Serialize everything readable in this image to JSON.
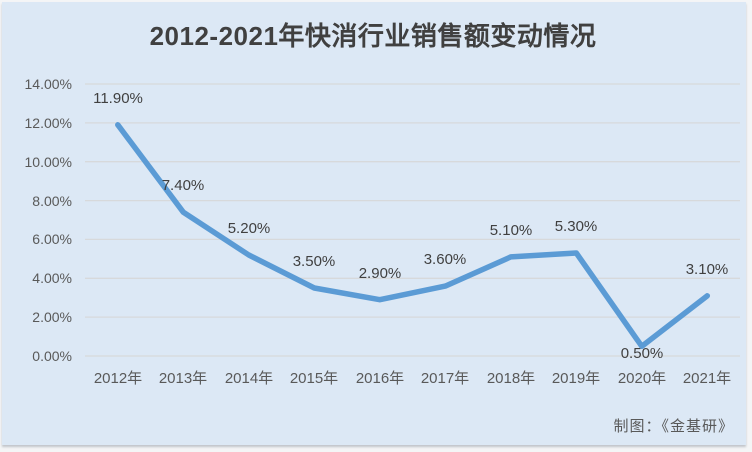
{
  "chart_data": {
    "type": "line",
    "title": "2012-2021年快消行业销售额变动情况",
    "categories": [
      "2012年",
      "2013年",
      "2014年",
      "2015年",
      "2016年",
      "2017年",
      "2018年",
      "2019年",
      "2020年",
      "2021年"
    ],
    "values": [
      11.9,
      7.4,
      5.2,
      3.5,
      2.9,
      3.6,
      5.1,
      5.3,
      0.5,
      3.1
    ],
    "data_labels": [
      "11.90%",
      "7.40%",
      "5.20%",
      "3.50%",
      "2.90%",
      "3.60%",
      "5.10%",
      "5.30%",
      "0.50%",
      "3.10%"
    ],
    "y_tick_values": [
      0,
      2,
      4,
      6,
      8,
      10,
      12,
      14
    ],
    "y_tick_labels": [
      "0.00%",
      "2.00%",
      "4.00%",
      "6.00%",
      "8.00%",
      "10.00%",
      "12.00%",
      "14.00%"
    ],
    "xlabel": "",
    "ylabel": "",
    "ylim": [
      0,
      14
    ],
    "grid": true,
    "legend": "none",
    "credit": "制图：《金基研》",
    "colors": {
      "line": "#5B9BD5",
      "panel_bg": "#dce8f5",
      "grid": "#d7d9db",
      "title": "#404040",
      "tick": "#595959",
      "data_label": "#404040"
    }
  }
}
